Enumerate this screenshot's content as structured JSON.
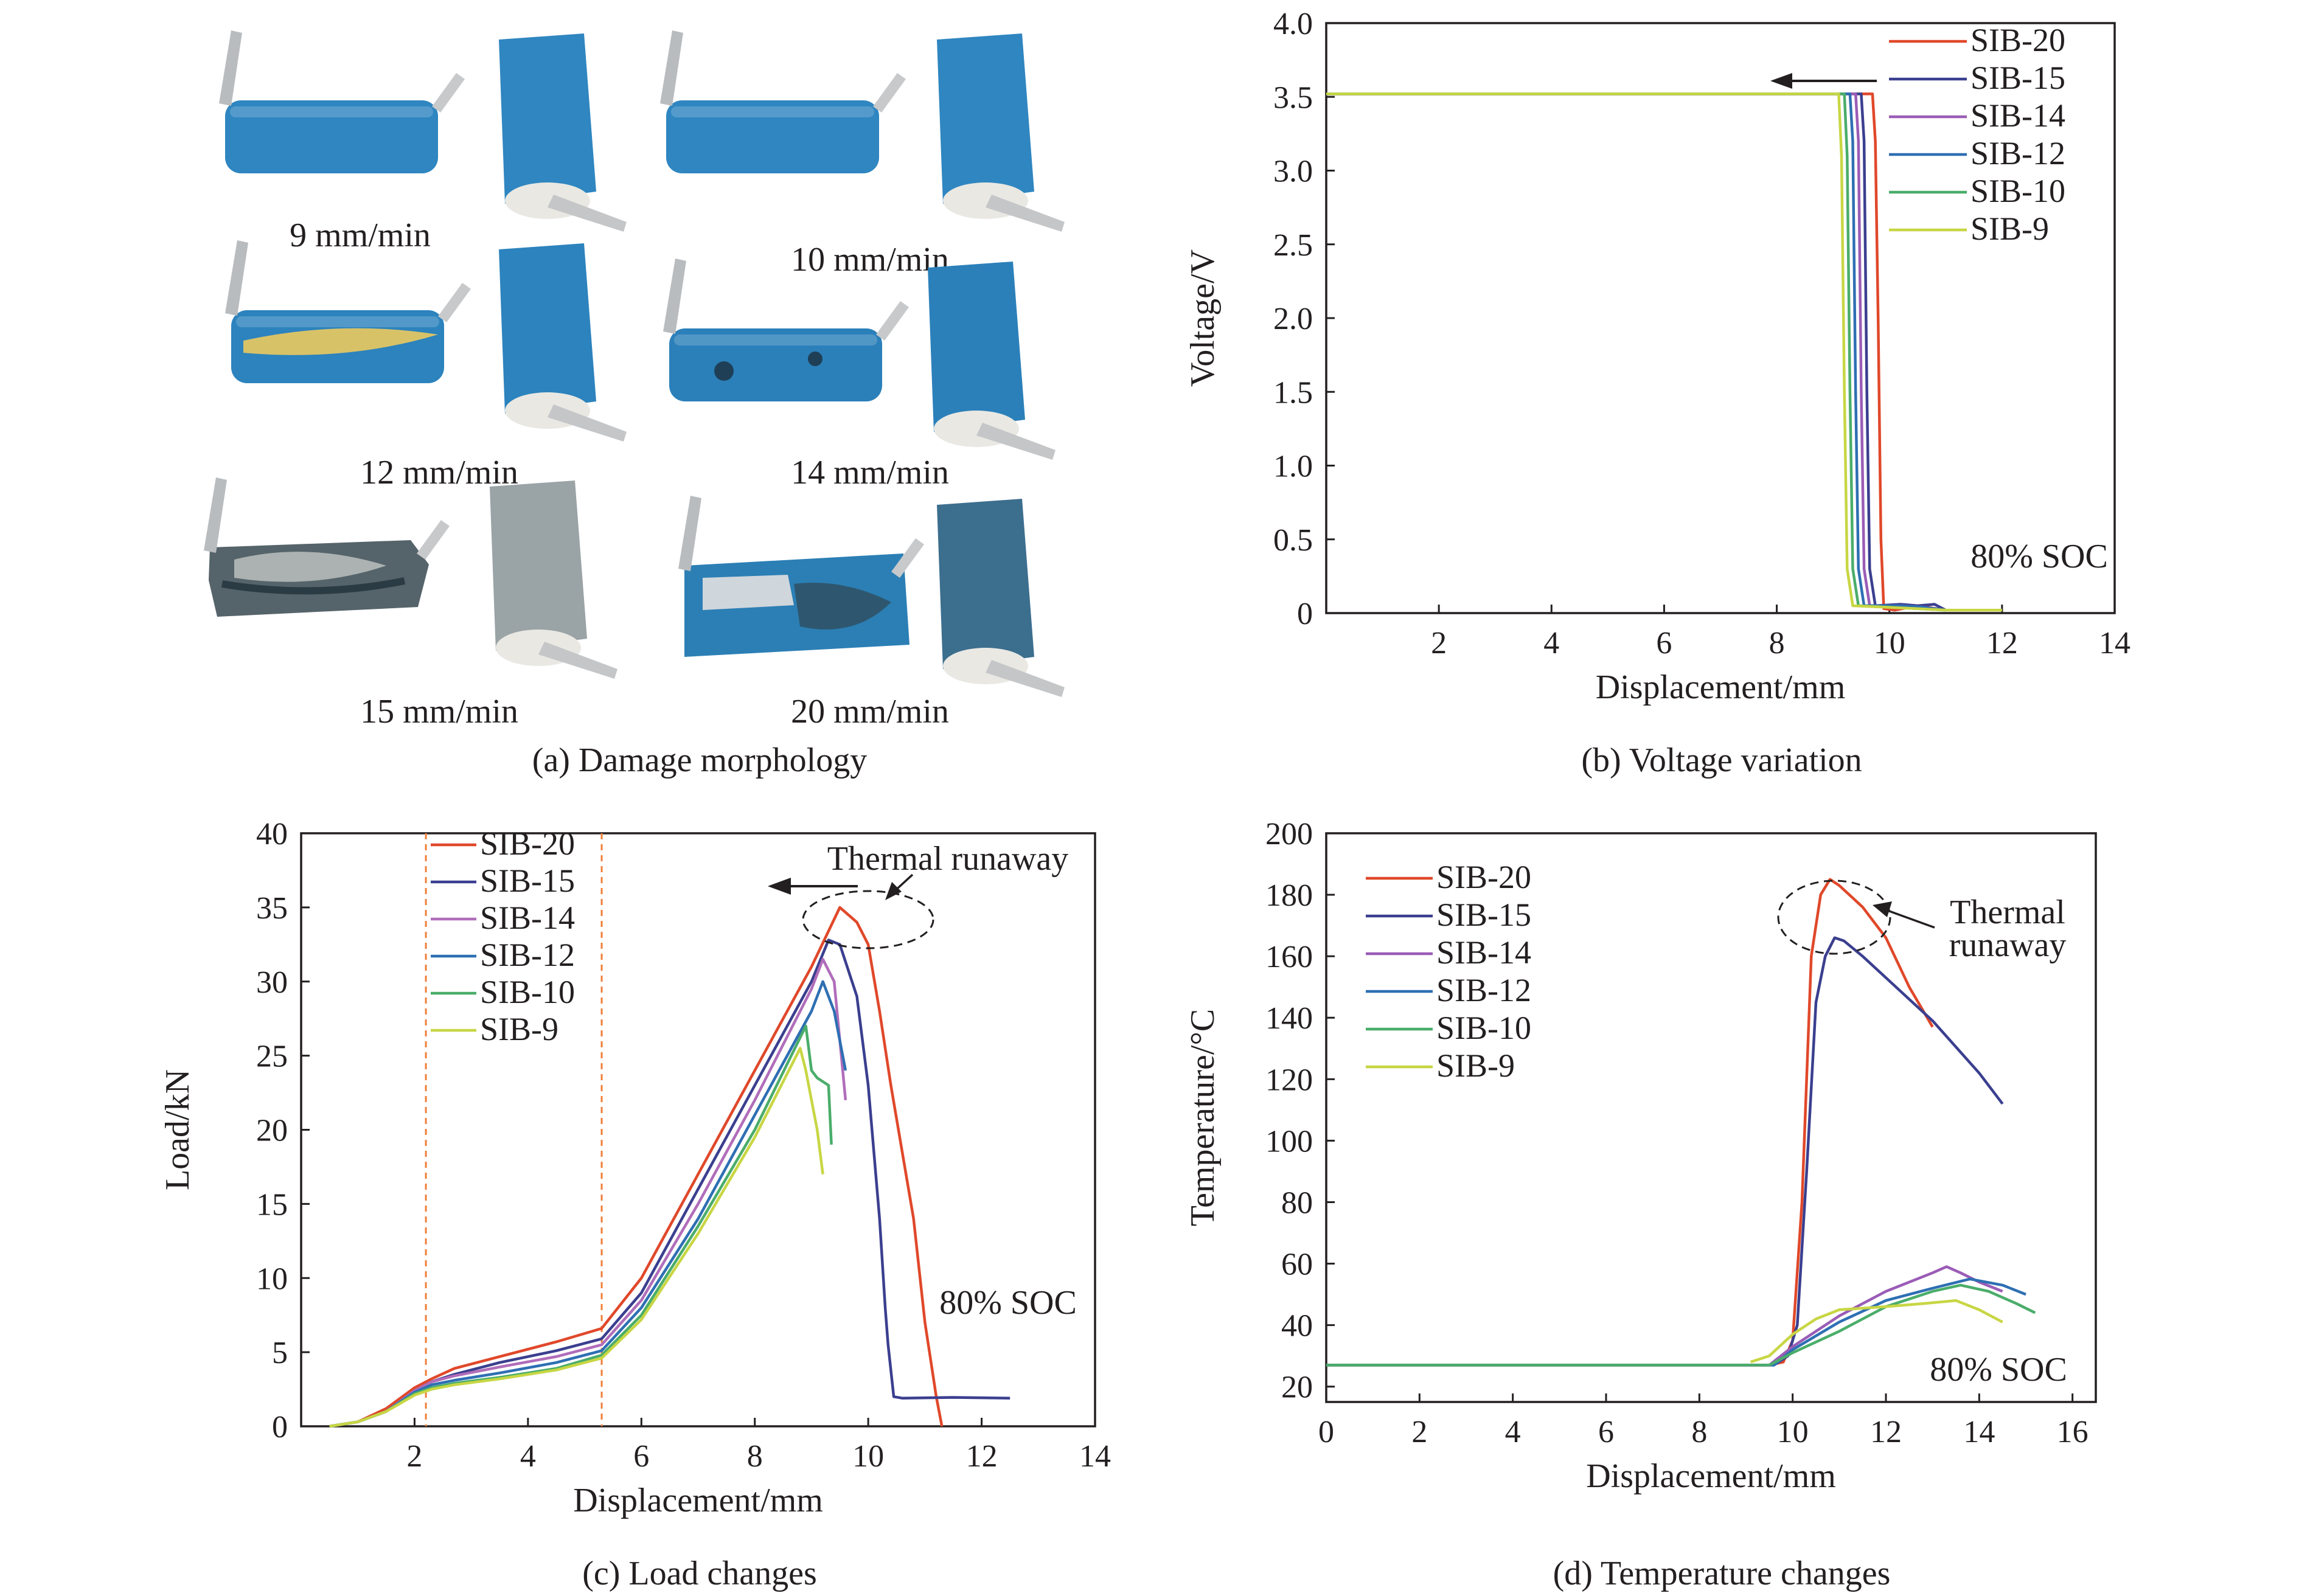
{
  "panels": {
    "a": {
      "caption": "(a) Damage morphology",
      "samples": [
        {
          "label": "9 mm/min",
          "color": "#2f86c0",
          "damage": "intact"
        },
        {
          "label": "10 mm/min",
          "color": "#2f86c0",
          "damage": "intact"
        },
        {
          "label": "12 mm/min",
          "color": "#2c83bd",
          "damage": "yellow-stripe"
        },
        {
          "label": "14 mm/min",
          "color": "#2b80ba",
          "damage": "dark-spots"
        },
        {
          "label": "15 mm/min",
          "color": "#59676a",
          "damage": "charred"
        },
        {
          "label": "20 mm/min",
          "color": "#2b7fb5",
          "damage": "crushed"
        }
      ]
    },
    "b": {
      "caption": "(b) Voltage variation",
      "annotation": "80% SOC"
    },
    "c": {
      "caption": "(c) Load changes",
      "annotation": "80% SOC",
      "thermal_runaway": "Thermal runaway"
    },
    "d": {
      "caption": "(d) Temperature changes",
      "annotation": "80% SOC",
      "thermal_runaway": [
        "Thermal",
        "runaway"
      ]
    }
  },
  "chart_data": [
    {
      "id": "b",
      "type": "line",
      "title": "Voltage variation",
      "xlabel": "Displacement/mm",
      "ylabel": "Voltage/V",
      "xlim": [
        0,
        14
      ],
      "ylim": [
        0,
        4.0
      ],
      "xticks": [
        2,
        4,
        6,
        8,
        10,
        12,
        14
      ],
      "yticks": [
        0,
        0.5,
        1.0,
        1.5,
        2.0,
        2.5,
        3.0,
        3.5,
        4.0
      ],
      "ytick_labels": [
        "0",
        "0.5",
        "1.0",
        "1.5",
        "2.0",
        "2.5",
        "3.0",
        "3.5",
        "4.0"
      ],
      "legend_position": "top-right",
      "series": [
        {
          "name": "SIB-20",
          "color": "#e0482a",
          "x": [
            0,
            9.7,
            9.75,
            9.8,
            9.85,
            9.9,
            10.1,
            10.5,
            11.0
          ],
          "y": [
            3.52,
            3.52,
            3.2,
            2.0,
            0.5,
            0.03,
            0.02,
            0.05,
            0.02
          ]
        },
        {
          "name": "SIB-15",
          "color": "#3b3f8f",
          "x": [
            0,
            9.5,
            9.55,
            9.6,
            9.65,
            9.75,
            10.2,
            10.5,
            10.8,
            11.0
          ],
          "y": [
            3.52,
            3.52,
            3.2,
            1.5,
            0.3,
            0.05,
            0.06,
            0.05,
            0.06,
            0.02
          ]
        },
        {
          "name": "SIB-14",
          "color": "#9a5cb6",
          "x": [
            0,
            9.4,
            9.45,
            9.5,
            9.55,
            9.65,
            10.2,
            10.6,
            11.0
          ],
          "y": [
            3.52,
            3.52,
            3.2,
            1.5,
            0.3,
            0.05,
            0.05,
            0.04,
            0.02
          ]
        },
        {
          "name": "SIB-12",
          "color": "#2e6fb3",
          "x": [
            0,
            9.3,
            9.35,
            9.4,
            9.45,
            9.55,
            10.2,
            10.6,
            11.0
          ],
          "y": [
            3.52,
            3.52,
            3.2,
            1.5,
            0.3,
            0.05,
            0.05,
            0.04,
            0.02
          ]
        },
        {
          "name": "SIB-10",
          "color": "#4aad6a",
          "x": [
            0,
            9.2,
            9.25,
            9.3,
            9.35,
            9.45,
            10.0,
            10.5,
            11.0
          ],
          "y": [
            3.52,
            3.52,
            3.1,
            1.5,
            0.3,
            0.05,
            0.04,
            0.03,
            0.02
          ]
        },
        {
          "name": "SIB-9",
          "color": "#c8d644",
          "x": [
            0,
            9.1,
            9.15,
            9.2,
            9.25,
            9.35,
            9.9,
            10.5,
            11.0,
            12.0
          ],
          "y": [
            3.52,
            3.52,
            3.1,
            1.5,
            0.3,
            0.05,
            0.04,
            0.03,
            0.02,
            0.02
          ]
        }
      ]
    },
    {
      "id": "c",
      "type": "line",
      "title": "Load changes",
      "xlabel": "Displacement/mm",
      "ylabel": "Load/kN",
      "xlim": [
        0,
        14
      ],
      "ylim": [
        0,
        40
      ],
      "xticks": [
        2,
        4,
        6,
        8,
        10,
        12,
        14
      ],
      "yticks": [
        0,
        5,
        10,
        15,
        20,
        25,
        30,
        35,
        40
      ],
      "ytick_labels": [
        "0",
        "5",
        "10",
        "15",
        "20",
        "25",
        "30",
        "35",
        "40"
      ],
      "legend_position": "top-left",
      "reference_lines_x": [
        2.2,
        5.3
      ],
      "series": [
        {
          "name": "SIB-20",
          "color": "#e0482a",
          "x": [
            0.5,
            1.0,
            1.5,
            2.0,
            2.3,
            2.7,
            3.5,
            4.5,
            5.3,
            6.0,
            7.0,
            8.0,
            9.0,
            9.5,
            9.8,
            10.0,
            10.2,
            10.4,
            10.8,
            11.0,
            11.2,
            11.3
          ],
          "y": [
            0,
            0.3,
            1.2,
            2.6,
            3.2,
            3.9,
            4.7,
            5.7,
            6.6,
            10,
            17,
            24,
            31,
            35,
            34,
            32.5,
            28,
            23,
            14,
            7,
            2,
            0
          ]
        },
        {
          "name": "SIB-15",
          "color": "#3b3f8f",
          "x": [
            0.5,
            1.0,
            1.5,
            2.0,
            2.3,
            2.7,
            3.5,
            4.5,
            5.3,
            6.0,
            7.0,
            8.0,
            9.0,
            9.3,
            9.5,
            9.8,
            10.0,
            10.2,
            10.3,
            10.35,
            10.45,
            10.6,
            11.5,
            12.5
          ],
          "y": [
            0,
            0.3,
            1.0,
            2.4,
            3.0,
            3.5,
            4.3,
            5.1,
            5.9,
            9,
            16,
            23,
            30,
            32.8,
            32.5,
            29,
            23,
            14,
            8,
            5.5,
            2,
            1.9,
            1.95,
            1.9
          ]
        },
        {
          "name": "SIB-14",
          "color": "#b06dba",
          "x": [
            0.5,
            1.0,
            1.5,
            2.0,
            2.3,
            2.7,
            3.5,
            4.5,
            5.3,
            6.0,
            7.0,
            8.0,
            9.0,
            9.2,
            9.4,
            9.6
          ],
          "y": [
            0,
            0.3,
            1.0,
            2.4,
            3.0,
            3.4,
            4.0,
            4.7,
            5.5,
            8.5,
            15,
            22,
            29.5,
            31.5,
            30,
            22
          ]
        },
        {
          "name": "SIB-12",
          "color": "#2e6fb3",
          "x": [
            0.5,
            1.0,
            1.5,
            2.0,
            2.3,
            2.7,
            3.5,
            4.5,
            5.3,
            6.0,
            7.0,
            8.0,
            9.0,
            9.2,
            9.4,
            9.6
          ],
          "y": [
            0,
            0.3,
            1.0,
            2.3,
            2.8,
            3.1,
            3.6,
            4.3,
            5.1,
            8,
            14,
            21,
            28,
            30,
            28,
            24
          ]
        },
        {
          "name": "SIB-10",
          "color": "#4aad6a",
          "x": [
            0.5,
            1.0,
            1.5,
            2.0,
            2.3,
            2.7,
            3.5,
            4.5,
            5.3,
            6.0,
            7.0,
            8.0,
            8.9,
            9.0,
            9.1,
            9.3,
            9.35
          ],
          "y": [
            0,
            0.3,
            1.0,
            2.2,
            2.6,
            2.9,
            3.3,
            3.9,
            4.8,
            7.5,
            13.5,
            20,
            27,
            24,
            23.5,
            23,
            19
          ]
        },
        {
          "name": "SIB-9",
          "color": "#c8d644",
          "x": [
            0.5,
            1.0,
            1.5,
            2.0,
            2.3,
            2.7,
            3.5,
            4.5,
            5.3,
            6.0,
            7.0,
            8.0,
            8.8,
            8.9,
            9.0,
            9.1,
            9.2
          ],
          "y": [
            0,
            0.3,
            1.0,
            2.1,
            2.5,
            2.8,
            3.2,
            3.8,
            4.6,
            7.2,
            13,
            19.5,
            25.5,
            24,
            22,
            20,
            17
          ]
        }
      ]
    },
    {
      "id": "d",
      "type": "line",
      "title": "Temperature changes",
      "xlabel": "Displacement/mm",
      "ylabel": "Temperature/°C",
      "xlim": [
        0,
        16.5
      ],
      "ylim": [
        15,
        200
      ],
      "xticks": [
        0,
        2,
        4,
        6,
        8,
        10,
        12,
        14,
        16
      ],
      "yticks": [
        20,
        40,
        60,
        80,
        100,
        120,
        140,
        160,
        180,
        200
      ],
      "ytick_labels": [
        "20",
        "40",
        "60",
        "80",
        "100",
        "120",
        "140",
        "160",
        "180",
        "200"
      ],
      "legend_position": "top-left",
      "series": [
        {
          "name": "SIB-20",
          "color": "#e0482a",
          "x": [
            0,
            9.5,
            9.8,
            10.0,
            10.2,
            10.4,
            10.6,
            10.8,
            11.0,
            11.5,
            12.0,
            12.5,
            13.0
          ],
          "y": [
            27,
            27,
            28,
            35,
            80,
            160,
            180,
            185,
            183,
            176,
            166,
            150,
            137
          ]
        },
        {
          "name": "SIB-15",
          "color": "#3b3f8f",
          "x": [
            0,
            9.6,
            9.9,
            10.1,
            10.3,
            10.5,
            10.7,
            10.9,
            11.1,
            11.5,
            12.0,
            13.0,
            14.0,
            14.5
          ],
          "y": [
            27,
            27,
            30,
            40,
            90,
            145,
            160,
            166,
            165,
            160,
            153,
            139,
            122,
            112
          ]
        },
        {
          "name": "SIB-14",
          "color": "#9a5cb6",
          "x": [
            0,
            9.5,
            10.0,
            11.0,
            12.0,
            13.0,
            13.3,
            13.6,
            14.0,
            14.5
          ],
          "y": [
            27,
            27,
            33,
            43,
            51,
            57,
            59,
            57,
            54,
            51
          ]
        },
        {
          "name": "SIB-12",
          "color": "#2e6fb3",
          "x": [
            0,
            9.6,
            10.0,
            11.0,
            12.0,
            13.0,
            13.8,
            14.5,
            15.0
          ],
          "y": [
            27,
            27,
            32,
            41,
            48,
            52,
            55,
            53,
            50
          ]
        },
        {
          "name": "SIB-10",
          "color": "#4aad6a",
          "x": [
            0,
            9.5,
            10.0,
            11.0,
            12.0,
            13.0,
            13.6,
            14.2,
            14.8,
            15.2
          ],
          "y": [
            27,
            27,
            31,
            38,
            46,
            51,
            53,
            51,
            47,
            44
          ]
        },
        {
          "name": "SIB-9",
          "color": "#c8d644",
          "x": [
            9.1,
            9.5,
            10.0,
            10.5,
            11.0,
            12.0,
            12.8,
            13.5,
            14.0,
            14.5
          ],
          "y": [
            28,
            30,
            37,
            42,
            45,
            46,
            47,
            48,
            45,
            41
          ]
        }
      ]
    }
  ]
}
